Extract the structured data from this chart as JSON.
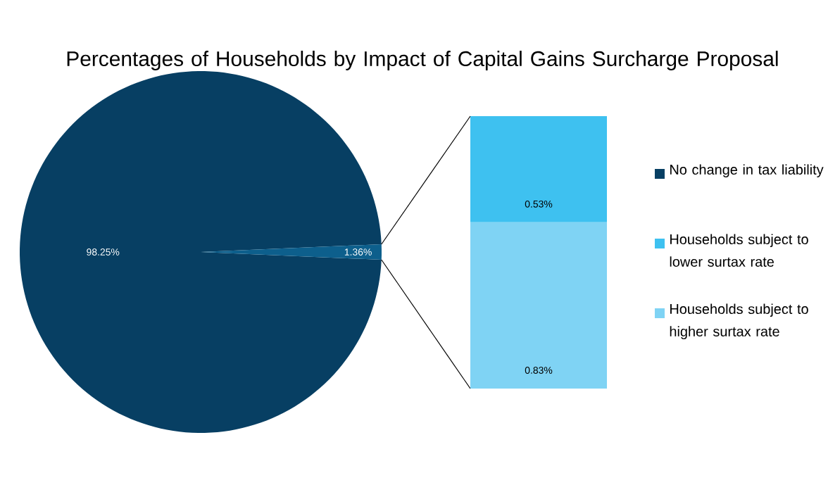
{
  "chart_data": [
    {
      "type": "pie",
      "title": "Percentages of Households by Impact of Capital Gains Surcharge Proposal",
      "categories": [
        "No change in tax liability",
        null
      ],
      "values": [
        98.25,
        1.36
      ],
      "value_labels": [
        "98.25%",
        "1.36%"
      ],
      "colors": [
        "#073f63",
        "#0d5f8c"
      ],
      "legend": "right"
    },
    {
      "type": "bar",
      "stacked": true,
      "categories": [
        null
      ],
      "series": [
        {
          "name": "Households subject to higher surtax rate",
          "color": "#7fd3f4",
          "values": [
            0.83
          ],
          "value_labels": [
            "0.83%"
          ]
        },
        {
          "name": "Households subject to lower surtax rate",
          "color": "#3ec1f0",
          "values": [
            0.53
          ],
          "value_labels": [
            "0.53%"
          ]
        }
      ],
      "legend": "right"
    }
  ]
}
